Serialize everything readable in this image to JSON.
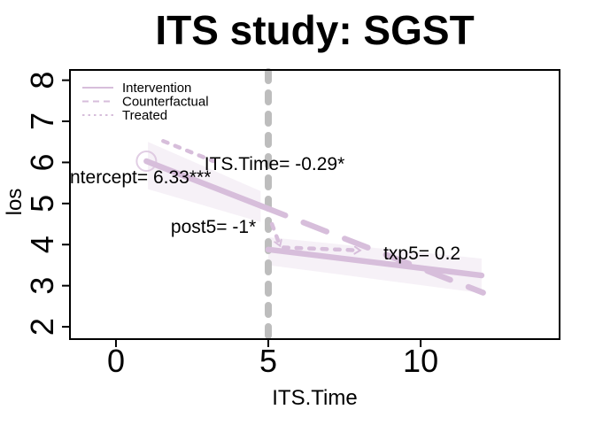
{
  "page": {
    "background": "#ffffff"
  },
  "chart_data": {
    "type": "line",
    "title": "ITS study: SGST",
    "xlabel": "ITS.Time",
    "ylabel": "los",
    "xlim": [
      -1.51,
      14.56
    ],
    "ylim": [
      1.7,
      8.25
    ],
    "xticks": [
      0,
      5,
      10
    ],
    "yticks": [
      2,
      3,
      4,
      5,
      6,
      7,
      8
    ],
    "grid": false,
    "colors": {
      "series": "#d7bedb",
      "band": "#d7bedb",
      "intervention_rule": "#bdbdbd",
      "axis": "#000000"
    },
    "intervention_line": {
      "x": 5,
      "style": "dotted"
    },
    "legend": {
      "position": "top-left",
      "items": [
        {
          "label": "Intervention",
          "style": "solid"
        },
        {
          "label": "Counterfactual",
          "style": "dashed"
        },
        {
          "label": "Treated",
          "style": "dotted"
        }
      ]
    },
    "series": [
      {
        "name": "intervention-pre",
        "style": "solid",
        "points": [
          [
            1,
            6.03
          ],
          [
            4.8,
            4.93
          ]
        ]
      },
      {
        "name": "intervention-post",
        "style": "solid",
        "points": [
          [
            5,
            3.88
          ],
          [
            12,
            3.25
          ]
        ]
      },
      {
        "name": "counterfactual-post",
        "style": "dashed",
        "points": [
          [
            4.8,
            4.93
          ],
          [
            12.05,
            2.83
          ]
        ]
      },
      {
        "name": "treated-pre",
        "style": "dotted",
        "points": [
          [
            1.55,
            6.52
          ],
          [
            3.2,
            6.03
          ]
        ]
      },
      {
        "name": "treated-drop",
        "style": "dotted",
        "arrow": true,
        "points": [
          [
            5.12,
            4.5
          ],
          [
            5.38,
            3.98
          ]
        ]
      },
      {
        "name": "treated-post",
        "style": "dotted",
        "arrow": true,
        "points": [
          [
            5.5,
            3.93
          ],
          [
            8.0,
            3.86
          ]
        ]
      }
    ],
    "confidence_bands": [
      {
        "name": "pre-band",
        "points": [
          [
            1.05,
            6.5
          ],
          [
            4.75,
            5.3
          ],
          [
            4.75,
            4.55
          ],
          [
            1.05,
            5.35
          ]
        ]
      },
      {
        "name": "post-band",
        "points": [
          [
            5,
            4.18
          ],
          [
            12,
            3.66
          ],
          [
            12,
            2.82
          ],
          [
            5,
            3.5
          ]
        ]
      }
    ],
    "start_marker": {
      "x": 1,
      "y": 6.03,
      "shape": "open-circle"
    },
    "annotations": [
      {
        "text": "ITS.Time= -0.29*",
        "x": 2.9,
        "y": 5.82
      },
      {
        "text": "ntercept= 6.33***",
        "x": -1.51,
        "y": 5.49
      },
      {
        "text": "post5= -1*",
        "x": 1.8,
        "y": 4.29
      },
      {
        "text": "txp5= 0.2",
        "x": 8.78,
        "y": 3.64
      }
    ]
  }
}
